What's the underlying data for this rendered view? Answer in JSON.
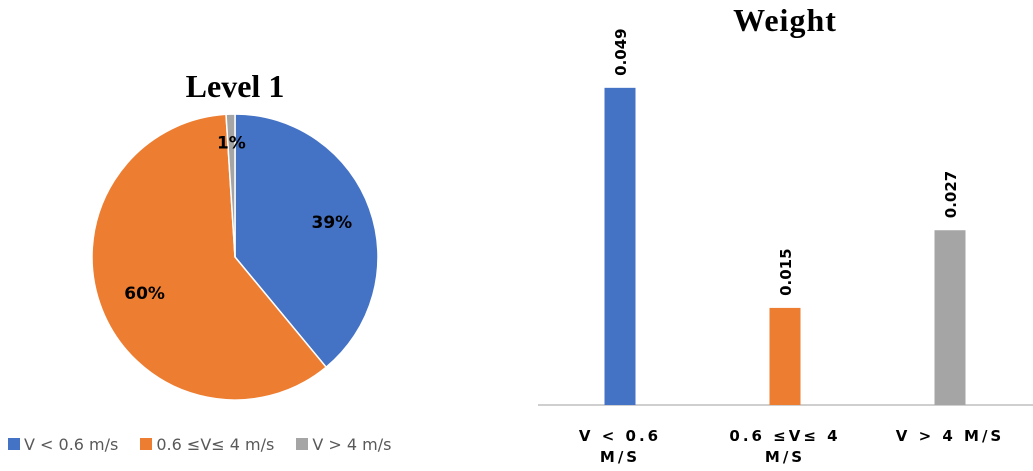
{
  "chart_data": [
    {
      "type": "pie",
      "title": "Level 1",
      "categories": [
        "V < 0.6 m/s",
        "0.6 ≤V≤ 4 m/s",
        "V > 4 m/s"
      ],
      "values": [
        39,
        60,
        1
      ],
      "labels": [
        "39%",
        "60%",
        "1%"
      ],
      "colors": [
        "#4472C4",
        "#ED7D31",
        "#A5A5A5"
      ],
      "legend": "bottom"
    },
    {
      "type": "bar",
      "title": "Weight",
      "categories": [
        "V < 0.6 M/S",
        "0.6 ≤V≤ 4 M/S",
        "V > 4 M/S"
      ],
      "values": [
        0.049,
        0.015,
        0.027
      ],
      "labels": [
        "0.049",
        "0.015",
        "0.027"
      ],
      "colors": [
        "#4472C4",
        "#ED7D31",
        "#A5A5A5"
      ],
      "ylim": [
        0,
        0.055
      ],
      "grid": false
    }
  ]
}
